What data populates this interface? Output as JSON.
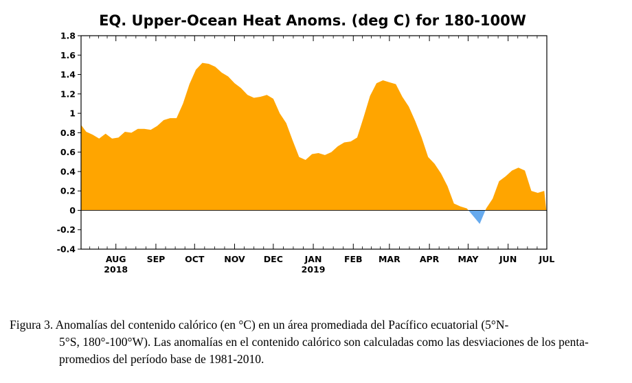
{
  "chart_data": {
    "type": "area",
    "title": "EQ. Upper-Ocean Heat Anoms. (deg C) for 180-100W",
    "ylim": [
      -0.4,
      1.8
    ],
    "yticks": [
      "1.8",
      "1.6",
      "1.4",
      "1.2",
      "1",
      "0.8",
      "0.6",
      "0.4",
      "0.2",
      "0",
      "-0.2",
      "-0.4"
    ],
    "ytick_values": [
      1.8,
      1.6,
      1.4,
      1.2,
      1.0,
      0.8,
      0.6,
      0.4,
      0.2,
      0,
      -0.2,
      -0.4
    ],
    "xlim": [
      "2018-07-05",
      "2019-07-01"
    ],
    "month_ticks": [
      {
        "label": "AUG",
        "date": "2018-08-01",
        "year": "2018"
      },
      {
        "label": "SEP",
        "date": "2018-09-01"
      },
      {
        "label": "OCT",
        "date": "2018-10-01"
      },
      {
        "label": "NOV",
        "date": "2018-11-01"
      },
      {
        "label": "DEC",
        "date": "2018-12-01"
      },
      {
        "label": "JAN",
        "date": "2019-01-01",
        "year": "2019"
      },
      {
        "label": "FEB",
        "date": "2019-02-01"
      },
      {
        "label": "MAR",
        "date": "2019-03-01"
      },
      {
        "label": "APR",
        "date": "2019-04-01"
      },
      {
        "label": "MAY",
        "date": "2019-05-01"
      },
      {
        "label": "JUN",
        "date": "2019-06-01"
      },
      {
        "label": "JUL",
        "date": "2019-07-01"
      }
    ],
    "series": [
      {
        "x": [
          "2018-07-05",
          "2018-07-09",
          "2018-07-14",
          "2018-07-19",
          "2018-07-24",
          "2018-07-29",
          "2018-08-03",
          "2018-08-08",
          "2018-08-13",
          "2018-08-18",
          "2018-08-23",
          "2018-08-28",
          "2018-09-02",
          "2018-09-07",
          "2018-09-12",
          "2018-09-17",
          "2018-09-22",
          "2018-09-27",
          "2018-10-02",
          "2018-10-07",
          "2018-10-12",
          "2018-10-17",
          "2018-10-22",
          "2018-10-27",
          "2018-11-01",
          "2018-11-06",
          "2018-11-11",
          "2018-11-16",
          "2018-11-21",
          "2018-11-26",
          "2018-12-01",
          "2018-12-06",
          "2018-12-11",
          "2018-12-16",
          "2018-12-21",
          "2018-12-26",
          "2018-12-31",
          "2019-01-05",
          "2019-01-10",
          "2019-01-15",
          "2019-01-20",
          "2019-01-25",
          "2019-01-30",
          "2019-02-04",
          "2019-02-09",
          "2019-02-14",
          "2019-02-19",
          "2019-02-24",
          "2019-03-01",
          "2019-03-06",
          "2019-03-11",
          "2019-03-16",
          "2019-03-21",
          "2019-03-26",
          "2019-03-31",
          "2019-04-05",
          "2019-04-10",
          "2019-04-15",
          "2019-04-20",
          "2019-04-25",
          "2019-04-30",
          "2019-05-05",
          "2019-05-10",
          "2019-05-15",
          "2019-05-20",
          "2019-05-25",
          "2019-05-30",
          "2019-06-04",
          "2019-06-09",
          "2019-06-14",
          "2019-06-19",
          "2019-06-24",
          "2019-06-29",
          "2019-07-01"
        ],
        "values": [
          0.88,
          0.81,
          0.78,
          0.74,
          0.79,
          0.74,
          0.75,
          0.81,
          0.8,
          0.84,
          0.84,
          0.83,
          0.87,
          0.93,
          0.95,
          0.95,
          1.1,
          1.3,
          1.45,
          1.52,
          1.51,
          1.48,
          1.42,
          1.38,
          1.31,
          1.26,
          1.19,
          1.16,
          1.17,
          1.19,
          1.15,
          1.0,
          0.9,
          0.72,
          0.55,
          0.52,
          0.58,
          0.59,
          0.57,
          0.6,
          0.66,
          0.7,
          0.71,
          0.75,
          0.96,
          1.18,
          1.31,
          1.34,
          1.32,
          1.3,
          1.17,
          1.07,
          0.92,
          0.75,
          0.55,
          0.48,
          0.38,
          0.25,
          0.07,
          0.04,
          0.02,
          -0.06,
          -0.14,
          0.02,
          0.12,
          0.3,
          0.35,
          0.41,
          0.44,
          0.41,
          0.2,
          0.18,
          0.2,
          -0.05
        ]
      }
    ],
    "colors": {
      "positive": "#ffa500",
      "negative": "#66aaee"
    }
  },
  "caption": {
    "line1": "Figura 3. Anomalías del contenido calórico (en °C) en un área promediada del Pacífico ecuatorial (5°N-",
    "rest": "5°S, 180°-100°W). Las anomalías en el contenido calórico son calculadas como las desviaciones de los penta-promedios del período base de 1981-2010."
  }
}
